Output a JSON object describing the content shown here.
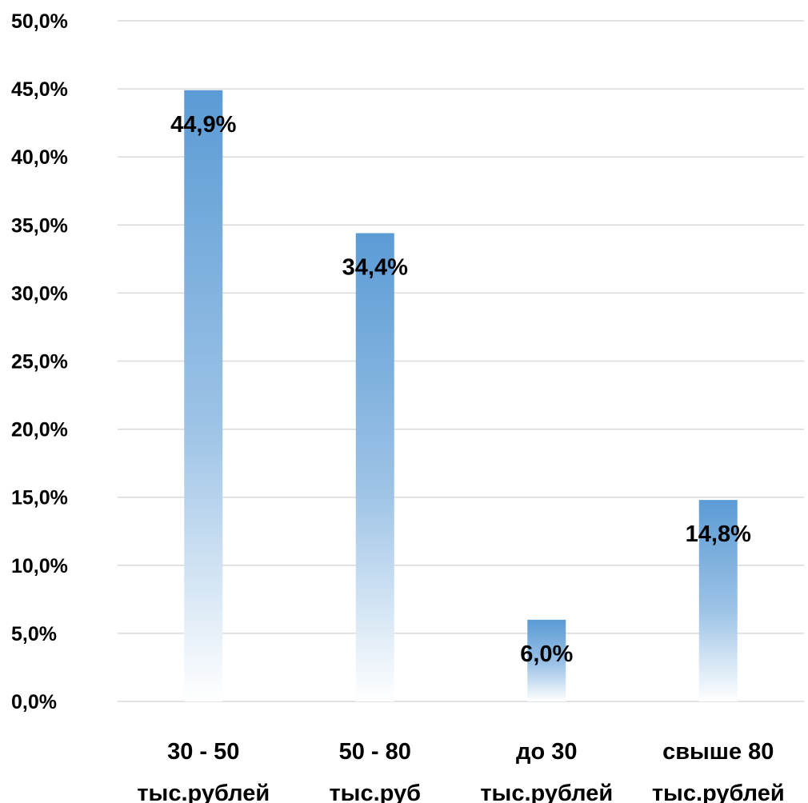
{
  "chart_data": {
    "type": "bar",
    "categories": [
      [
        "30 - 50",
        "тыс.рублей"
      ],
      [
        "50 - 80",
        "тыс.руб"
      ],
      [
        "до 30",
        "тыс.рублей"
      ],
      [
        "свыше 80",
        "тыс.рублей"
      ]
    ],
    "values": [
      44.9,
      34.4,
      6.0,
      14.8
    ],
    "data_labels": [
      "44,9%",
      "34,4%",
      "6,0%",
      "14,8%"
    ],
    "yticks": [
      "0,0%",
      "5,0%",
      "10,0%",
      "15,0%",
      "20,0%",
      "25,0%",
      "30,0%",
      "35,0%",
      "40,0%",
      "45,0%",
      "50,0%"
    ],
    "ylim": [
      0,
      50
    ],
    "ytick_step": 5,
    "grid": true,
    "legend": "none",
    "bar_color_top": "#5b9bd5",
    "bar_color_bottom": "#ffffff",
    "gridline_color": "#d9d9d9"
  }
}
